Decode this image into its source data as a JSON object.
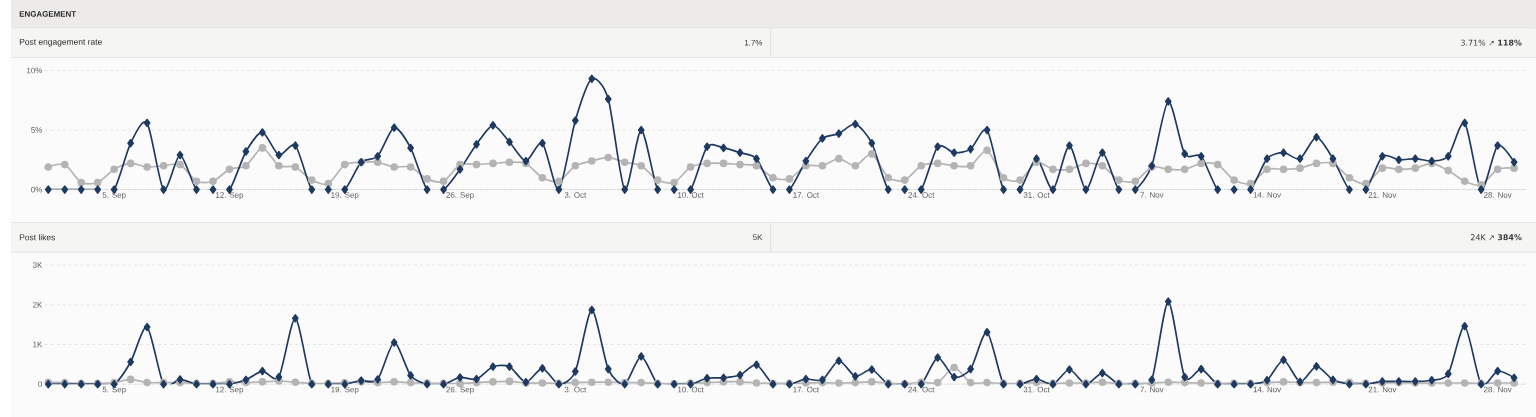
{
  "chart_data": [
    {
      "type": "other",
      "title": "ENGAGEMENT"
    },
    {
      "type": "line",
      "title": "Post engagement rate",
      "annotations": [
        "1.7%",
        "3.71% ↗ **118%**"
      ],
      "categories": [
        null,
        null,
        null,
        null,
        "5. Sep",
        null,
        null,
        null,
        null,
        null,
        null,
        "12. Sep",
        null,
        null,
        null,
        null,
        null,
        null,
        "19. Sep",
        null,
        null,
        null,
        null,
        null,
        null,
        "26. Sep",
        null,
        null,
        null,
        null,
        null,
        null,
        "3. Oct",
        null,
        null,
        null,
        null,
        null,
        null,
        "10. Oct",
        null,
        null,
        null,
        null,
        null,
        null,
        "17. Oct",
        null,
        null,
        null,
        null,
        null,
        null,
        "24. Oct",
        null,
        null,
        null,
        null,
        null,
        null,
        "31. Oct",
        null,
        null,
        null,
        null,
        null,
        null,
        "7. Nov",
        null,
        null,
        null,
        null,
        null,
        null,
        "14. Nov",
        null,
        null,
        null,
        null,
        null,
        null,
        "21. Nov",
        null,
        null,
        null,
        null,
        null,
        null,
        "28. Nov",
        null
      ],
      "series": [
        {
          "color": "#b4b4b4",
          "marker": "circle",
          "values": [
            1.9,
            2.1,
            0.6,
            0.6,
            1.7,
            2.2,
            1.9,
            2.0,
            2.1,
            0.7,
            0.7,
            1.7,
            2.0,
            3.5,
            2.0,
            1.9,
            0.8,
            0.5,
            2.1,
            2.3,
            2.3,
            1.9,
            1.9,
            0.9,
            0.7,
            2.1,
            2.1,
            2.2,
            2.3,
            2.2,
            1.0,
            0.7,
            2.0,
            2.4,
            2.7,
            2.3,
            2.0,
            0.8,
            0.6,
            1.9,
            2.2,
            2.2,
            2.1,
            2.0,
            1.0,
            0.9,
            2.0,
            2.0,
            2.6,
            2.0,
            3.0,
            1.0,
            0.8,
            2.0,
            2.2,
            2.0,
            2.0,
            3.3,
            1.0,
            0.8,
            2.3,
            1.7,
            1.7,
            2.2,
            2.0,
            0.8,
            0.7,
            1.9,
            1.7,
            1.7,
            2.2,
            2.1,
            0.8,
            0.5,
            1.7,
            1.7,
            1.8,
            2.2,
            2.2,
            1.0,
            0.5,
            1.8,
            1.7,
            1.8,
            2.2,
            1.6,
            0.7,
            0.4,
            1.7,
            1.8
          ]
        },
        {
          "color": "#1f3a61",
          "marker": "diamond",
          "values": [
            0,
            0,
            0,
            0,
            0,
            3.9,
            5.6,
            0,
            2.9,
            0,
            0,
            0,
            3.2,
            4.8,
            2.9,
            3.7,
            0,
            0,
            0,
            2.3,
            2.8,
            5.2,
            3.5,
            0,
            0,
            1.7,
            3.8,
            5.4,
            4.0,
            2.4,
            3.9,
            0,
            5.8,
            9.3,
            7.6,
            0,
            5.0,
            0,
            0,
            0,
            3.6,
            3.5,
            3.1,
            2.6,
            0,
            0,
            2.4,
            4.3,
            4.7,
            5.5,
            3.9,
            0,
            0,
            0,
            3.6,
            3.1,
            3.4,
            5.0,
            0,
            0,
            2.6,
            0,
            3.7,
            0,
            3.1,
            0,
            0,
            2.0,
            7.4,
            3.0,
            2.8,
            0,
            0,
            0,
            2.6,
            3.1,
            2.6,
            4.4,
            2.6,
            0,
            0,
            2.8,
            2.5,
            2.6,
            2.4,
            2.8,
            5.6,
            0,
            3.7,
            2.3
          ]
        }
      ],
      "ylim": [
        0,
        10
      ],
      "yticks": [
        {
          "value": 0,
          "label": "0%"
        },
        {
          "value": 5,
          "label": "5%"
        },
        {
          "value": 10,
          "label": "10%"
        }
      ],
      "grid": "y"
    },
    {
      "type": "line",
      "title": "Post likes",
      "annotations": [
        "5K",
        "24K ↗ **384%**"
      ],
      "categories": [
        null,
        null,
        null,
        null,
        "5. Sep",
        null,
        null,
        null,
        null,
        null,
        null,
        "12. Sep",
        null,
        null,
        null,
        null,
        null,
        null,
        "19. Sep",
        null,
        null,
        null,
        null,
        null,
        null,
        "26. Sep",
        null,
        null,
        null,
        null,
        null,
        null,
        "3. Oct",
        null,
        null,
        null,
        null,
        null,
        null,
        "10. Oct",
        null,
        null,
        null,
        null,
        null,
        null,
        "17. Oct",
        null,
        null,
        null,
        null,
        null,
        null,
        "24. Oct",
        null,
        null,
        null,
        null,
        null,
        null,
        "31. Oct",
        null,
        null,
        null,
        null,
        null,
        null,
        "7. Nov",
        null,
        null,
        null,
        null,
        null,
        null,
        "14. Nov",
        null,
        null,
        null,
        null,
        null,
        null,
        "21. Nov",
        null,
        null,
        null,
        null,
        null,
        null,
        "28. Nov",
        null
      ],
      "series": [
        {
          "color": "#b4b4b4",
          "marker": "circle",
          "values": [
            50,
            40,
            20,
            20,
            40,
            120,
            40,
            40,
            40,
            20,
            20,
            60,
            40,
            60,
            80,
            50,
            20,
            20,
            40,
            60,
            40,
            60,
            40,
            30,
            20,
            20,
            40,
            60,
            70,
            30,
            30,
            20,
            40,
            50,
            50,
            40,
            40,
            20,
            10,
            30,
            40,
            60,
            60,
            30,
            20,
            20,
            30,
            40,
            30,
            40,
            60,
            30,
            10,
            50,
            40,
            420,
            40,
            40,
            20,
            20,
            40,
            20,
            30,
            30,
            50,
            20,
            20,
            30,
            50,
            40,
            30,
            20,
            20,
            20,
            40,
            60,
            40,
            40,
            50,
            50,
            20,
            30,
            40,
            30,
            30,
            30,
            30,
            20,
            30,
            30
          ]
        },
        {
          "color": "#1f3a61",
          "marker": "diamond",
          "values": [
            0,
            0,
            0,
            0,
            0,
            560,
            1440,
            0,
            120,
            0,
            0,
            0,
            110,
            330,
            180,
            1660,
            0,
            0,
            0,
            90,
            120,
            1050,
            220,
            0,
            0,
            170,
            130,
            440,
            440,
            50,
            400,
            0,
            320,
            1870,
            380,
            0,
            700,
            0,
            0,
            0,
            150,
            160,
            230,
            490,
            0,
            0,
            130,
            110,
            590,
            200,
            370,
            0,
            0,
            0,
            670,
            180,
            380,
            1310,
            0,
            0,
            130,
            0,
            370,
            0,
            280,
            0,
            0,
            110,
            2080,
            180,
            380,
            0,
            0,
            0,
            100,
            610,
            60,
            450,
            110,
            0,
            0,
            70,
            70,
            70,
            100,
            260,
            1460,
            0,
            330,
            160
          ]
        }
      ],
      "ylim": [
        0,
        3000
      ],
      "yticks": [
        0,
        {
          "value": 1000,
          "label": "1K"
        },
        {
          "value": 2000,
          "label": "2K"
        },
        {
          "value": 3000,
          "label": "3K"
        }
      ],
      "grid": "y"
    }
  ]
}
